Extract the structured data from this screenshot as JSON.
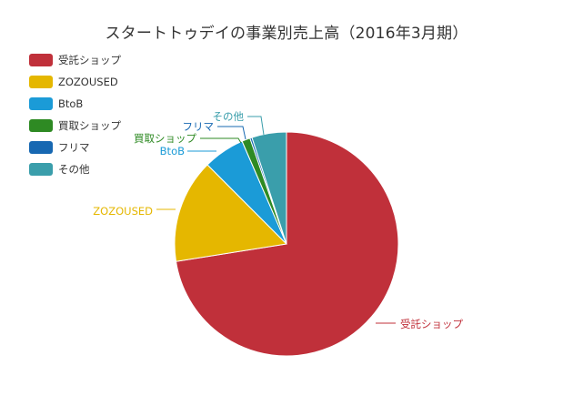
{
  "chart_data": {
    "type": "pie",
    "title": "スタートトゥデイの事業別売上高（2016年3月期）",
    "legend_position": "top-left",
    "slices": [
      {
        "name": "受託ショップ",
        "value": 72.5,
        "color": "#c0303a"
      },
      {
        "name": "ZOZOUSED",
        "value": 15.0,
        "color": "#e5b700"
      },
      {
        "name": "BtoB",
        "value": 6.0,
        "color": "#1b9bd7"
      },
      {
        "name": "買取ショップ",
        "value": 1.2,
        "color": "#2e8a23"
      },
      {
        "name": "フリマ",
        "value": 0.3,
        "color": "#1768b2"
      },
      {
        "name": "その他",
        "value": 5.0,
        "color": "#3a9eab"
      }
    ]
  }
}
